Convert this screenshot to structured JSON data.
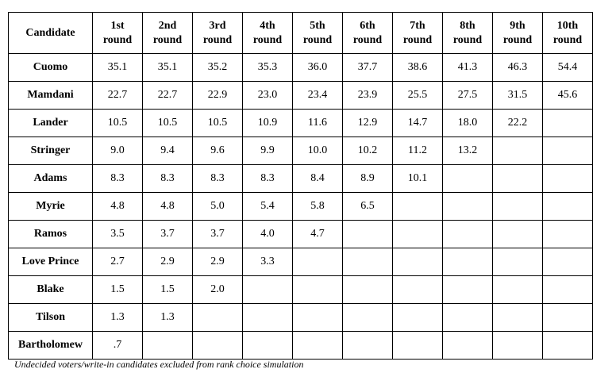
{
  "table": {
    "headers": [
      "Candidate",
      "1st round",
      "2nd round",
      "3rd round",
      "4th round",
      "5th round",
      "6th round",
      "7th round",
      "8th round",
      "9th round",
      "10th round"
    ],
    "rows": [
      [
        "Cuomo",
        "35.1",
        "35.1",
        "35.2",
        "35.3",
        "36.0",
        "37.7",
        "38.6",
        "41.3",
        "46.3",
        "54.4"
      ],
      [
        "Mamdani",
        "22.7",
        "22.7",
        "22.9",
        "23.0",
        "23.4",
        "23.9",
        "25.5",
        "27.5",
        "31.5",
        "45.6"
      ],
      [
        "Lander",
        "10.5",
        "10.5",
        "10.5",
        "10.9",
        "11.6",
        "12.9",
        "14.7",
        "18.0",
        "22.2"
      ],
      [
        "Stringer",
        "9.0",
        "9.4",
        "9.6",
        "9.9",
        "10.0",
        "10.2",
        "11.2",
        "13.2"
      ],
      [
        "Adams",
        "8.3",
        "8.3",
        "8.3",
        "8.3",
        "8.4",
        "8.9",
        "10.1"
      ],
      [
        "Myrie",
        "4.8",
        "4.8",
        "5.0",
        "5.4",
        "5.8",
        "6.5"
      ],
      [
        "Ramos",
        "3.5",
        "3.7",
        "3.7",
        "4.0",
        "4.7"
      ],
      [
        "Love Prince",
        "2.7",
        "2.9",
        "2.9",
        "3.3"
      ],
      [
        "Blake",
        "1.5",
        "1.5",
        "2.0"
      ],
      [
        "Tilson",
        "1.3",
        "1.3"
      ],
      [
        "Bartholomew",
        ".7"
      ]
    ],
    "footnote": "Undecided voters/write-in candidates excluded from rank choice simulation"
  }
}
